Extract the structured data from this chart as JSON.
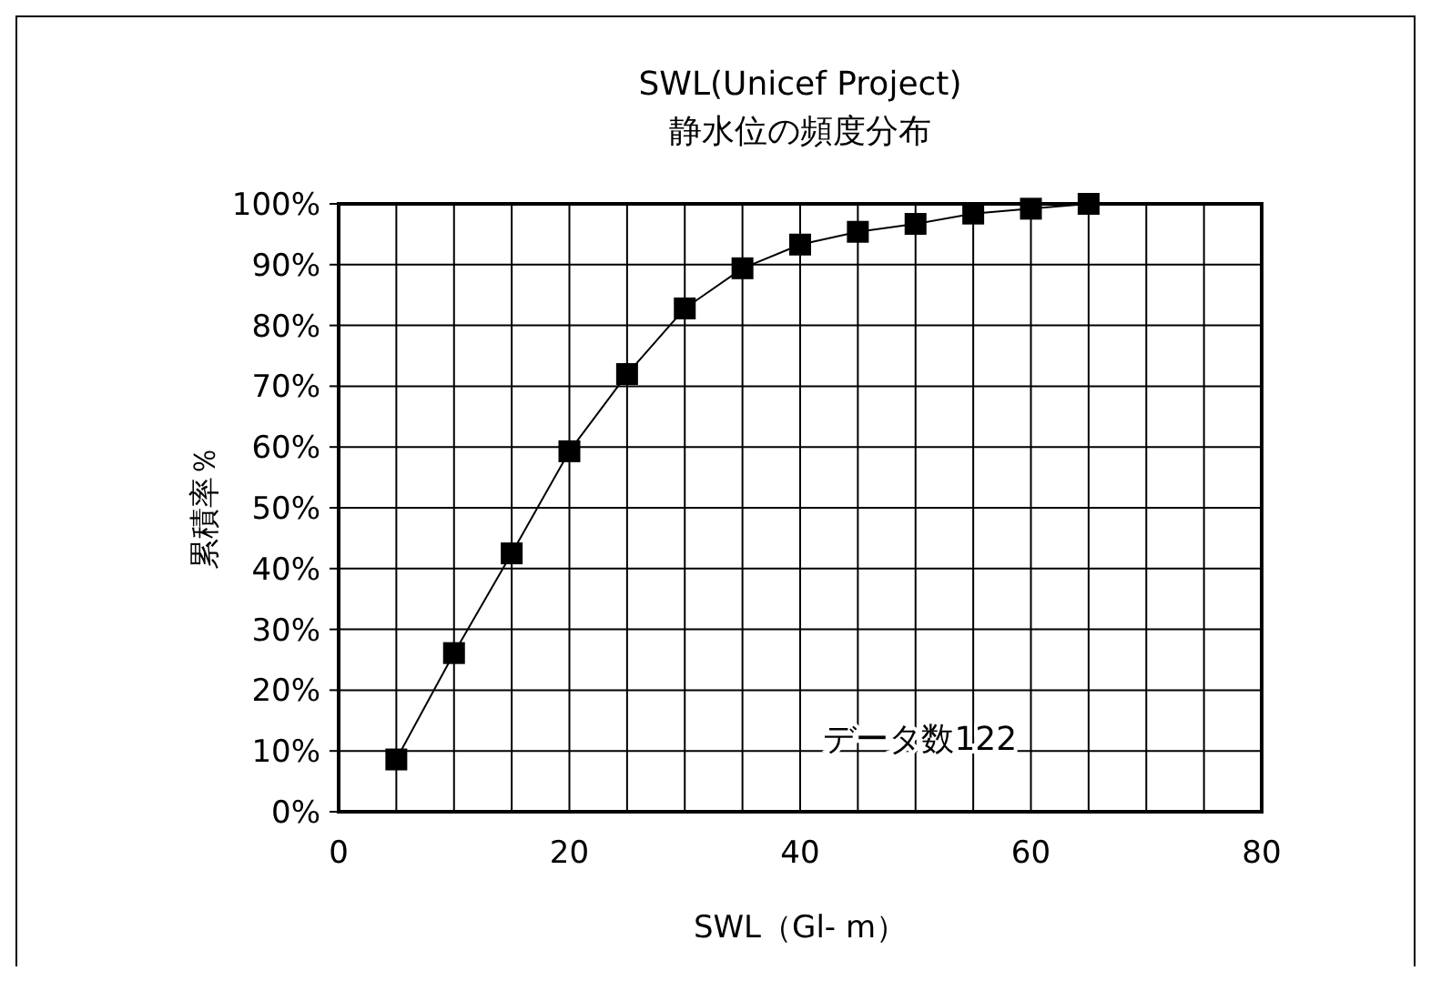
{
  "chart_data": {
    "type": "line",
    "title": "SWL(Unicef Project)",
    "subtitle": "静水位の頻度分布",
    "xlabel": "SWL（Gl- m）",
    "ylabel": "累積率％",
    "x": [
      5,
      10,
      15,
      20,
      25,
      30,
      35,
      40,
      45,
      50,
      55,
      60,
      65
    ],
    "series": [
      {
        "color": "#000000",
        "values": [
          8.6,
          26.1,
          42.5,
          59.3,
          72.0,
          82.8,
          89.4,
          93.3,
          95.4,
          96.7,
          98.4,
          99.2,
          100
        ]
      }
    ],
    "xlim": [
      0,
      80
    ],
    "xticks": [
      0,
      {
        "value": 5,
        "label": null
      },
      {
        "value": 10,
        "label": null
      },
      {
        "value": 15,
        "label": null
      },
      20,
      {
        "value": 25,
        "label": null
      },
      {
        "value": 30,
        "label": null
      },
      {
        "value": 35,
        "label": null
      },
      40,
      {
        "value": 45,
        "label": null
      },
      {
        "value": 50,
        "label": null
      },
      {
        "value": 55,
        "label": null
      },
      60,
      {
        "value": 65,
        "label": null
      },
      {
        "value": 70,
        "label": null
      },
      {
        "value": 75,
        "label": null
      },
      80
    ],
    "ylim": [
      0,
      100
    ],
    "yticks": [
      {
        "value": 0,
        "label": "0%"
      },
      {
        "value": 10,
        "label": "10%"
      },
      {
        "value": 20,
        "label": "20%"
      },
      {
        "value": 30,
        "label": "30%"
      },
      {
        "value": 40,
        "label": "40%"
      },
      {
        "value": 50,
        "label": "50%"
      },
      {
        "value": 60,
        "label": "60%"
      },
      {
        "value": 70,
        "label": "70%"
      },
      {
        "value": 80,
        "label": "80%"
      },
      {
        "value": 90,
        "label": "90%"
      },
      {
        "value": 100,
        "label": "100%"
      }
    ],
    "annotations": [
      "データ数122"
    ],
    "grid": true,
    "marker": "square",
    "line_style": "solid"
  }
}
